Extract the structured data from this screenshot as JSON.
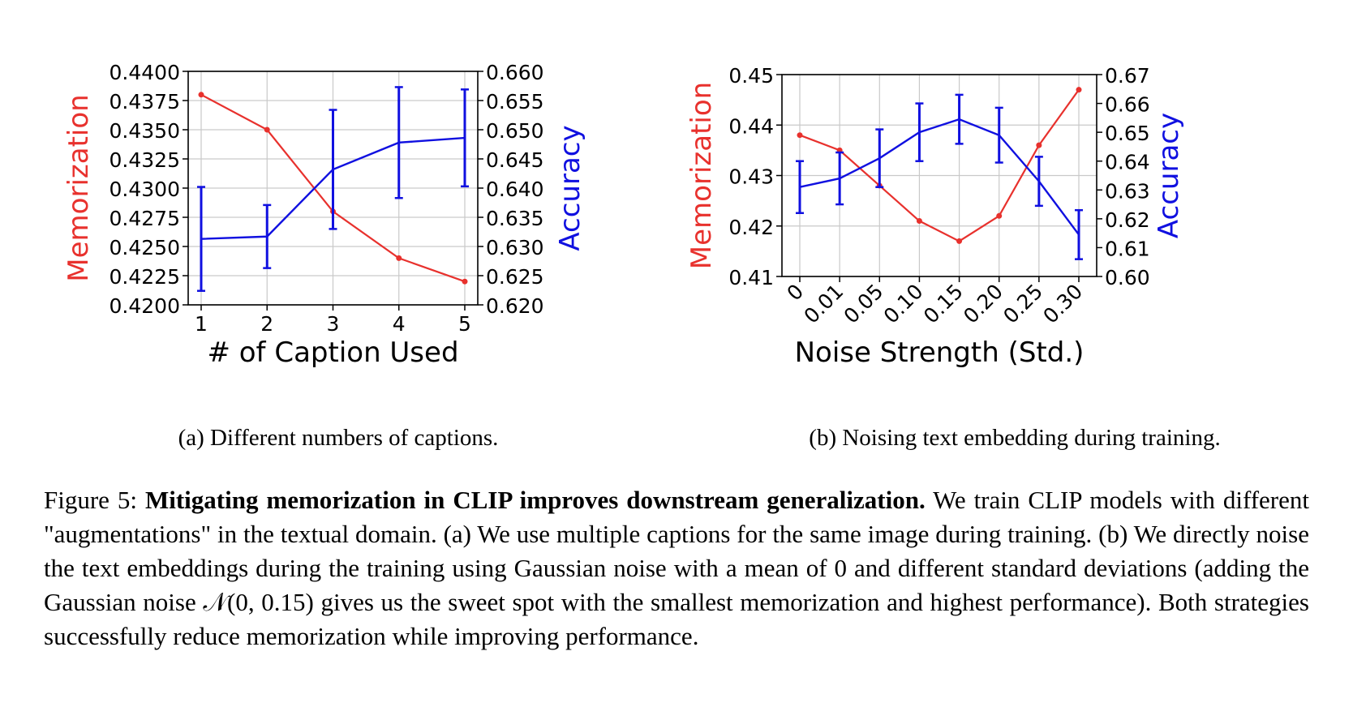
{
  "colors": {
    "memorization": "#e8312d",
    "accuracy": "#1010e0",
    "grid": "#c9c9c9"
  },
  "chart_data": [
    {
      "type": "line",
      "xlabel": "# of Caption Used",
      "ylabel_left": "Memorization",
      "ylabel_right": "Accuracy",
      "categories": [
        "1",
        "2",
        "3",
        "4",
        "5"
      ],
      "ylim_left": [
        0.42,
        0.44
      ],
      "ylim_right": [
        0.62,
        0.66
      ],
      "yticks_left": [
        "0.4200",
        "0.4225",
        "0.4250",
        "0.4275",
        "0.4300",
        "0.4325",
        "0.4350",
        "0.4375",
        "0.4400"
      ],
      "yticks_right": [
        "0.620",
        "0.625",
        "0.630",
        "0.635",
        "0.640",
        "0.645",
        "0.650",
        "0.655",
        "0.660"
      ],
      "grid": true,
      "series": [
        {
          "name": "Memorization",
          "axis": "left",
          "color": "#e8312d",
          "values": [
            0.438,
            0.435,
            0.428,
            0.424,
            0.422
          ]
        },
        {
          "name": "Accuracy",
          "axis": "right",
          "color": "#1010e0",
          "values": [
            0.6313,
            0.6317,
            0.6432,
            0.6478,
            0.6486
          ],
          "errors": [
            0.0089,
            0.0054,
            0.0102,
            0.0095,
            0.0083
          ]
        }
      ]
    },
    {
      "type": "line",
      "xlabel": "Noise Strength (Std.)",
      "ylabel_left": "Memorization",
      "ylabel_right": "Accuracy",
      "categories": [
        "0",
        "0.01",
        "0.05",
        "0.10",
        "0.15",
        "0.20",
        "0.25",
        "0.30"
      ],
      "ylim_left": [
        0.41,
        0.45
      ],
      "ylim_right": [
        0.6,
        0.67
      ],
      "yticks_left": [
        "0.41",
        "0.42",
        "0.43",
        "0.44",
        "0.45"
      ],
      "yticks_right": [
        "0.60",
        "0.61",
        "0.62",
        "0.63",
        "0.64",
        "0.65",
        "0.66",
        "0.67"
      ],
      "grid": true,
      "series": [
        {
          "name": "Memorization",
          "axis": "left",
          "color": "#e8312d",
          "values": [
            0.438,
            0.435,
            0.428,
            0.421,
            0.417,
            0.422,
            0.436,
            0.447
          ]
        },
        {
          "name": "Accuracy",
          "axis": "right",
          "color": "#1010e0",
          "values": [
            0.631,
            0.634,
            0.641,
            0.65,
            0.6545,
            0.649,
            0.633,
            0.6145
          ],
          "errors": [
            0.009,
            0.009,
            0.01,
            0.01,
            0.0085,
            0.0095,
            0.0085,
            0.0085
          ]
        }
      ]
    }
  ],
  "subcaptions": {
    "a": "(a) Different numbers of captions.",
    "b": "(b) Noising text embedding during training."
  },
  "figure_caption": {
    "label": "Figure 5:",
    "title": "Mitigating memorization in CLIP improves downstream generalization.",
    "body": "We train CLIP models with different \"augmentations\" in the textual domain. (a) We use multiple captions for the same image during training. (b) We directly noise the text embeddings during the training using Gaussian noise with a mean of 0 and different standard deviations (adding the Gaussian noise 𝒩(0, 0.15) gives us the sweet spot with the smallest memorization and highest performance). Both strategies successfully reduce memorization while improving performance."
  }
}
